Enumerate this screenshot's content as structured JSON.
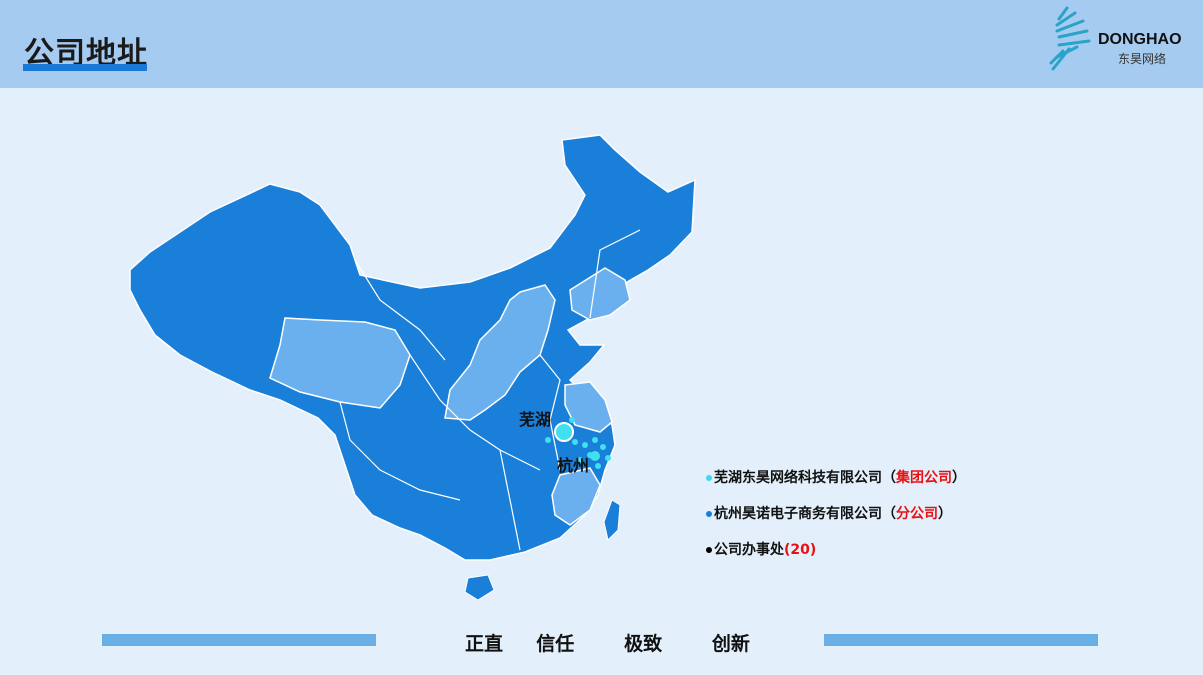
{
  "header": {
    "title": "公司地址",
    "logo": {
      "brand": "DONGHAO",
      "sub": "东昊网络"
    }
  },
  "map": {
    "cities": [
      {
        "label": "芜湖"
      },
      {
        "label": "杭州"
      }
    ],
    "colors": {
      "province": "#1a7fd9",
      "highlight": "#6ab0ee",
      "border": "#ffffff",
      "marker": "#3fe0f0"
    }
  },
  "legend": [
    {
      "text": "芜湖东昊网络科技有限公司",
      "paren_open": "（",
      "highlight": "集团公司",
      "paren_close": "）",
      "dot_color": "#3fd8f0"
    },
    {
      "text": "杭州昊诺电子商务有限公司",
      "paren_open": "（",
      "highlight": "分公司",
      "paren_close": "）",
      "dot_color": "#1a7fd9"
    },
    {
      "text": "公司办事处",
      "paren_open": "",
      "highlight": "(20)",
      "paren_close": "",
      "dot_color": "#000000"
    }
  ],
  "footer": {
    "slogan": "正直  信任   极致   创新"
  }
}
